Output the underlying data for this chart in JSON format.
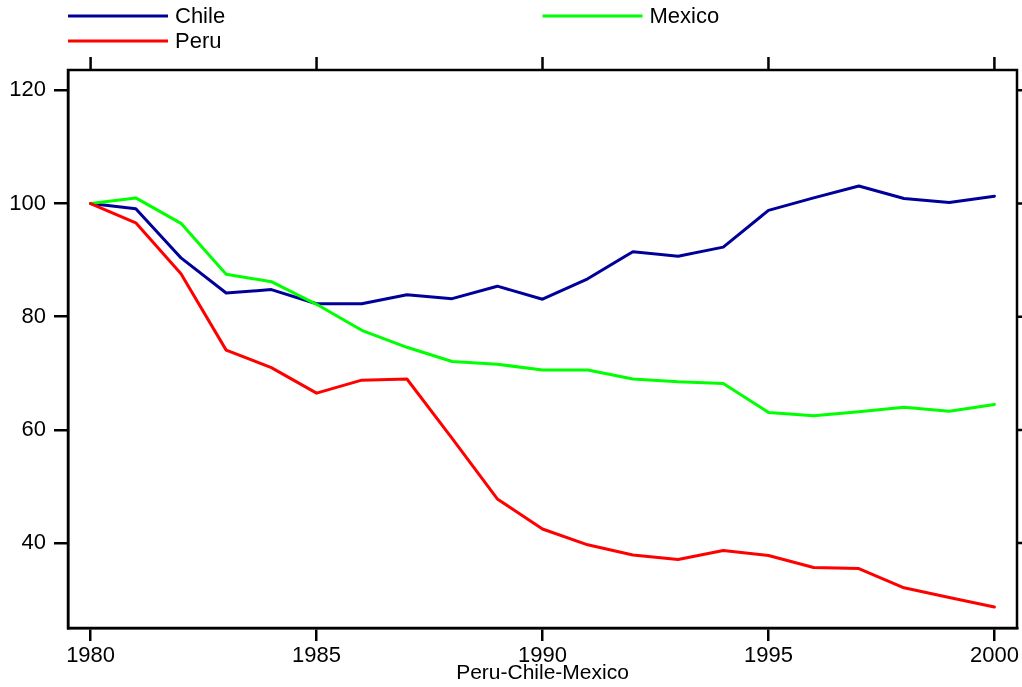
{
  "chart_data": {
    "type": "line",
    "xlabel": "Peru-Chile-Mexico",
    "x": [
      1980,
      1981,
      1982,
      1983,
      1984,
      1985,
      1986,
      1987,
      1988,
      1989,
      1990,
      1991,
      1992,
      1993,
      1994,
      1995,
      1996,
      1997,
      1998,
      1999,
      2000
    ],
    "series": [
      {
        "name": "Chile",
        "color": "#000099",
        "values": [
          100,
          99.1,
          90.4,
          84.2,
          84.8,
          82.3,
          82.3,
          83.9,
          83.2,
          85.4,
          83.1,
          86.7,
          91.5,
          90.7,
          92.3,
          98.8,
          101.0,
          103.1,
          100.9,
          100.2,
          101.3
        ]
      },
      {
        "name": "Mexico",
        "color": "#00ff00",
        "values": [
          100,
          101.0,
          96.5,
          87.5,
          86.2,
          82.2,
          77.6,
          74.6,
          72.1,
          71.6,
          70.6,
          70.6,
          69.0,
          68.5,
          68.2,
          63.1,
          62.5,
          63.2,
          64.0,
          63.3,
          64.5
        ]
      },
      {
        "name": "Peru",
        "color": "#ff0000",
        "values": [
          100,
          96.6,
          87.6,
          74.1,
          71.0,
          66.5,
          68.8,
          69.0,
          58.5,
          47.8,
          42.5,
          39.7,
          37.9,
          37.1,
          38.7,
          37.8,
          35.7,
          35.5,
          32.1,
          30.4,
          28.7
        ]
      }
    ],
    "xlim": [
      1979.5,
      2000.5
    ],
    "xticks": [
      1980,
      1985,
      1990,
      1995,
      2000
    ],
    "ylim": [
      25,
      123.6
    ],
    "yticks": [
      40,
      60,
      80,
      100,
      120
    ],
    "legend": "top",
    "line_style": "solid",
    "grid": false
  }
}
